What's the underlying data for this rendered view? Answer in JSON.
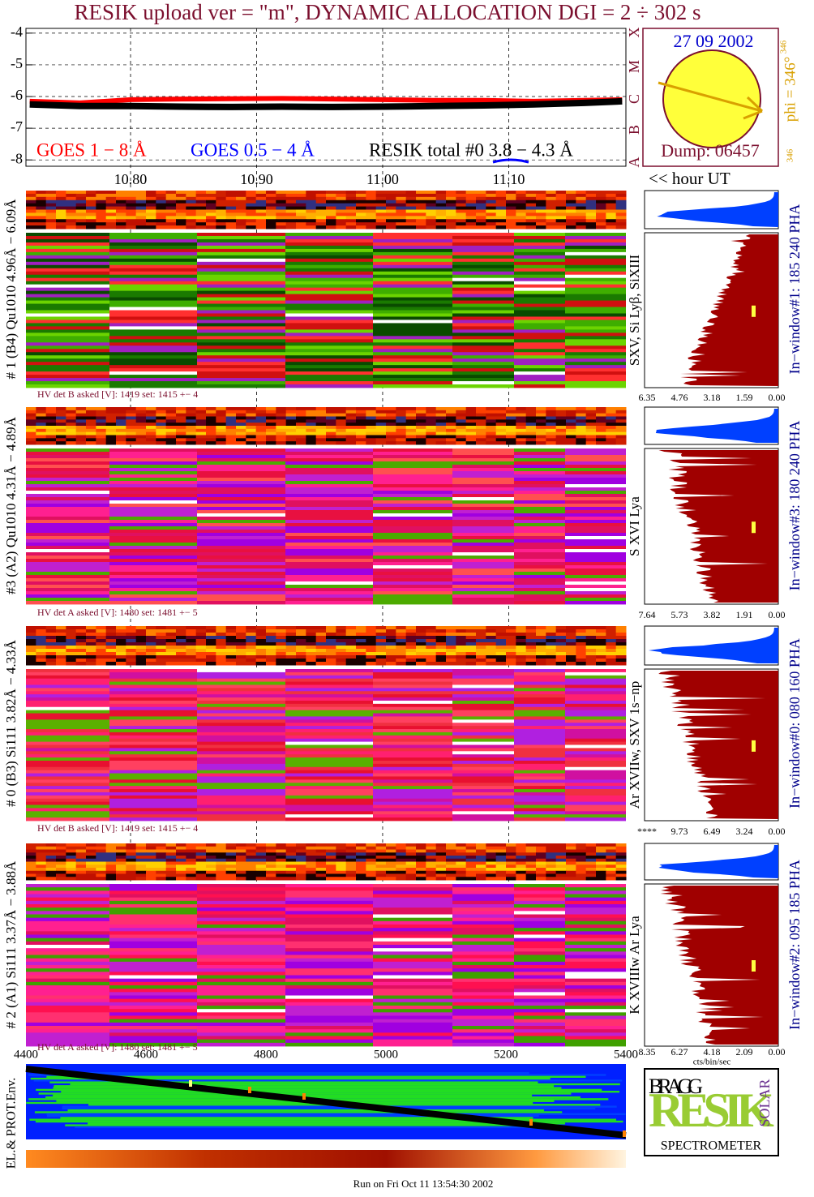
{
  "title": "RESIK upload ver = \"m\", DYNAMIC ALLOCATION  DGI =   2 ÷ 302 s",
  "chart_data": [
    {
      "type": "line",
      "x": [
        10.72,
        10.76,
        10.8,
        10.84,
        10.88,
        10.92,
        10.96,
        11.0,
        11.04,
        11.08,
        11.12,
        11.16,
        11.19
      ],
      "series": [
        {
          "name": "GOES 1 − 8 Å",
          "color": "#ff0000",
          "values": [
            -6.15,
            -6.2,
            -6.1,
            -6.08,
            -6.07,
            -6.06,
            -6.08,
            -6.1,
            -6.12,
            -6.12,
            -6.15,
            -6.12,
            -6.1
          ]
        },
        {
          "name": "GOES 0.5 − 4 Å",
          "color": "#0000ff",
          "values": [
            null,
            null,
            null,
            null,
            null,
            null,
            null,
            null,
            null,
            null,
            null,
            null,
            null
          ]
        },
        {
          "name": "RESIK total #0  3.8 − 4.3 Å",
          "color": "#000000",
          "values": [
            -6.25,
            -6.3,
            -6.3,
            -6.32,
            -6.33,
            -6.32,
            -6.33,
            -6.32,
            -6.3,
            -6.28,
            -6.25,
            -6.2,
            -6.15
          ]
        }
      ],
      "xlim": [
        10.717,
        11.193
      ],
      "xticks": [
        {
          "value": 10.8,
          "label": "10.80"
        },
        {
          "value": 10.9,
          "label": "10.90"
        },
        {
          "value": 11.0,
          "label": "11.00"
        },
        {
          "value": 11.1,
          "label": "11.10"
        }
      ],
      "ylim": [
        -8.2,
        -3.85
      ],
      "yticks": [
        -4,
        -5,
        -6,
        -7,
        -8
      ],
      "grid": true,
      "x_label": "<< hour UT"
    }
  ],
  "sun": {
    "date": "27 09 2002",
    "phi": "phi = 346°",
    "phi_sup": "346",
    "phi_small": "346",
    "dump": "Dump: 06457",
    "classes": [
      "X",
      "M",
      "C",
      "B",
      "A"
    ]
  },
  "channels": [
    {
      "left": "# 1 (B4) Qu1010 4.96Å − 6.09Å",
      "line": "SXV, Si Lyβ, SiXIII",
      "window": "In−window#1:  185 240 PHA",
      "hv": "HV det B asked [V]:  1419 set:  1415 +−    4",
      "ticks": [
        "6.35",
        "4.76",
        "3.18",
        "1.59",
        "0.00"
      ]
    },
    {
      "left": "#3 (A2) Qu1010  4.31Å − 4.89Å",
      "line": "S XVI Lya",
      "window": "In−window#3:  180 240 PHA",
      "hv": "HV det A asked [V]:  1480 set:  1481 +−    5",
      "ticks": [
        "7.64",
        "5.73",
        "3.82",
        "1.91",
        "0.00"
      ]
    },
    {
      "left": "# 0 (B3) Si111  3.82Å − 4.33Å",
      "line": "Ar XVIIw, SXV 1s−np",
      "window": "In−window#0:  080 160 PHA",
      "hv": "HV det B asked [V]:  1419 set:  1415 +−    4",
      "ticks": [
        "****",
        "9.73",
        "6.49",
        "3.24",
        "0.00"
      ]
    },
    {
      "left": "# 2 (A1) Si111  3.37Å − 3.88Å",
      "line": "K XVIIIw  Ar Lya",
      "window": "In−window#2:  095 185 PHA",
      "hv": "HV det A asked [V]:  1480 set:  1481 +−    5",
      "ticks": [
        "8.35",
        "6.27",
        "4.18",
        "2.09",
        "0.00"
      ]
    }
  ],
  "bin_ticks": [
    "4400",
    "4600",
    "4800",
    "5000",
    "5200",
    "5400"
  ],
  "pha_unit": "cts/bin/sec",
  "env_label": "EL.& PROT.Env.",
  "logo": {
    "top": "BRAGG",
    "name": "RESIK",
    "side": "SOLAR",
    "bottom": "SPECTROMETER"
  },
  "footer": "Run on Fri Oct 11 13:54:30 2002"
}
